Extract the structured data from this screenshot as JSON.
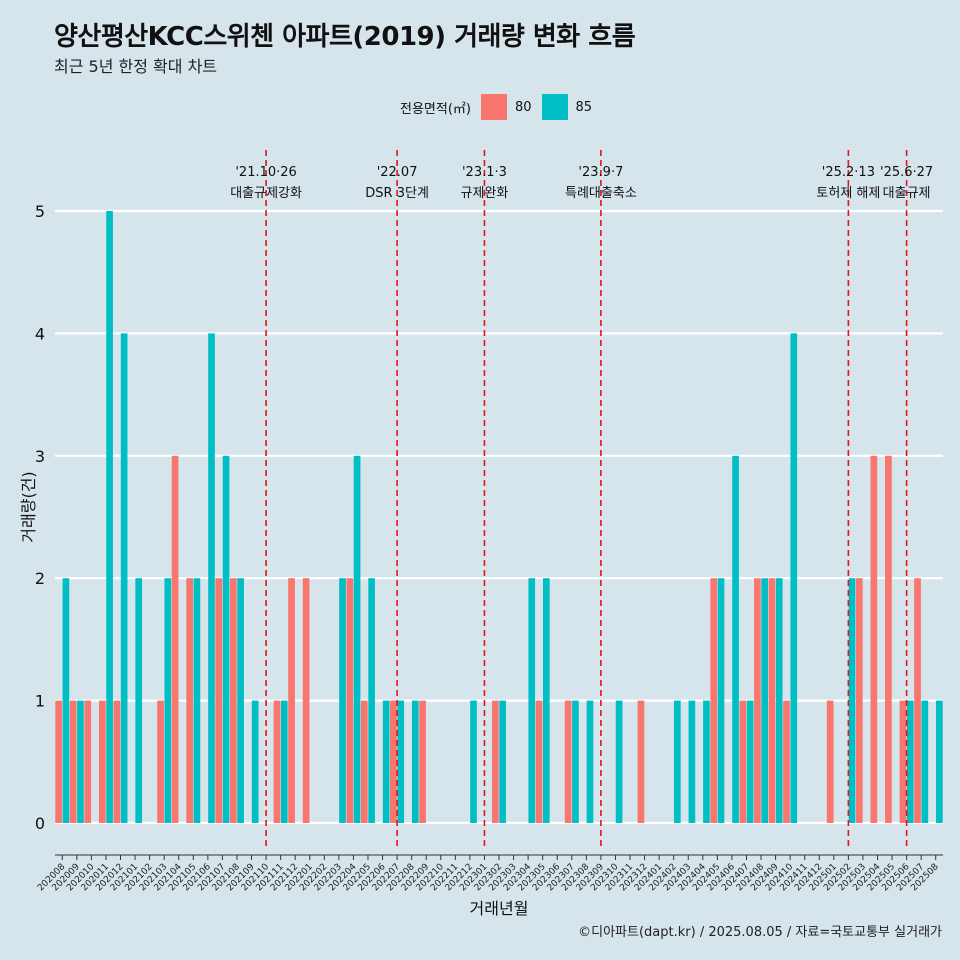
{
  "title": "양산평산KCC스위첸 아파트(2019) 거래량 변화 흐름",
  "subtitle": "최근 5년 한정 확대 차트",
  "caption": "©디아파트(dapt.kr) / 2025.08.05 / 자료=국토교통부 실거래가",
  "colors": {
    "background": "#d6e4ec",
    "s80": "#f8766d",
    "s85": "#00bfc4",
    "vline": "#e8121b"
  },
  "chart_data": {
    "type": "bar",
    "xlabel": "거래년월",
    "ylabel": "거래량(건)",
    "ylim": [
      0,
      5
    ],
    "yticks": [
      0,
      1,
      2,
      3,
      4,
      5
    ],
    "grid": true,
    "legend": {
      "title": "전용면적(㎡)",
      "placement": "top",
      "entries": [
        "80",
        "85"
      ]
    },
    "categories": [
      "202008",
      "202009",
      "202010",
      "202011",
      "202012",
      "202101",
      "202102",
      "202103",
      "202104",
      "202105",
      "202106",
      "202107",
      "202108",
      "202109",
      "202110",
      "202111",
      "202112",
      "202201",
      "202202",
      "202203",
      "202204",
      "202205",
      "202206",
      "202207",
      "202208",
      "202209",
      "202210",
      "202211",
      "202212",
      "202301",
      "202302",
      "202303",
      "202304",
      "202305",
      "202306",
      "202307",
      "202308",
      "202309",
      "202310",
      "202311",
      "202312",
      "202401",
      "202402",
      "202403",
      "202404",
      "202405",
      "202406",
      "202407",
      "202408",
      "202409",
      "202410",
      "202411",
      "202412",
      "202501",
      "202502",
      "202503",
      "202504",
      "202505",
      "202506",
      "202507",
      "202508"
    ],
    "series": [
      {
        "name": "80",
        "values": [
          1,
          1,
          1,
          1,
          1,
          0,
          0,
          1,
          3,
          2,
          0,
          2,
          2,
          0,
          0,
          1,
          2,
          2,
          0,
          0,
          2,
          1,
          0,
          1,
          0,
          1,
          0,
          0,
          0,
          0,
          1,
          0,
          0,
          1,
          0,
          1,
          0,
          0,
          0,
          0,
          1,
          0,
          0,
          0,
          0,
          2,
          0,
          1,
          2,
          2,
          1,
          0,
          0,
          1,
          0,
          2,
          3,
          3,
          1,
          2,
          0
        ]
      },
      {
        "name": "85",
        "values": [
          2,
          1,
          0,
          5,
          4,
          2,
          0,
          2,
          0,
          2,
          4,
          3,
          2,
          1,
          0,
          1,
          0,
          0,
          0,
          2,
          3,
          2,
          1,
          1,
          1,
          0,
          0,
          0,
          1,
          0,
          1,
          0,
          2,
          2,
          0,
          1,
          1,
          0,
          1,
          0,
          0,
          0,
          1,
          1,
          1,
          2,
          3,
          1,
          2,
          2,
          4,
          0,
          0,
          0,
          2,
          0,
          0,
          0,
          1,
          1,
          1
        ]
      }
    ],
    "annotations": [
      {
        "at": "202110",
        "date": "'21.10·26",
        "text": "대출규제강화"
      },
      {
        "at": "202207",
        "date": "'22.07",
        "text": "DSR 3단계"
      },
      {
        "at": "202301",
        "date": "'23.1·3",
        "text": "규제완화"
      },
      {
        "at": "202309",
        "date": "'23.9·7",
        "text": "특례대출축소"
      },
      {
        "at": "202502",
        "date": "'25.2·13",
        "text": "토허제 해제"
      },
      {
        "at": "202506",
        "date": "'25.6·27",
        "text": "대출규제"
      }
    ]
  }
}
